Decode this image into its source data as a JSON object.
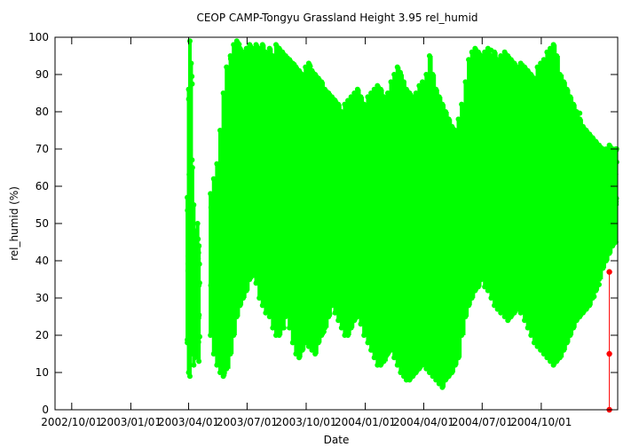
{
  "chart_data": {
    "type": "scatter",
    "title": "CEOP CAMP-Tongyu Grassland Height 3.95 rel_humid",
    "xlabel": "Date",
    "ylabel": "rel_humid (%)",
    "xlim": [
      "2002-09-05",
      "2005-01-28"
    ],
    "ylim": [
      0,
      100
    ],
    "x_ticks": [
      {
        "value": "2002-10-01",
        "label": "2002/10/01"
      },
      {
        "value": "2003-01-01",
        "label": "2003/01/01"
      },
      {
        "value": "2003-04-01",
        "label": "2003/04/01"
      },
      {
        "value": "2003-07-01",
        "label": "2003/07/01"
      },
      {
        "value": "2003-10-01",
        "label": "2003/10/01"
      },
      {
        "value": "2004-01-01",
        "label": "2004/01/01"
      },
      {
        "value": "2004-04-01",
        "label": "2004/04/01"
      },
      {
        "value": "2004-07-01",
        "label": "2004/07/01"
      },
      {
        "value": "2004-10-01",
        "label": "2004/10/01"
      }
    ],
    "y_ticks": [
      "0",
      "10",
      "20",
      "30",
      "40",
      "50",
      "60",
      "70",
      "80",
      "90",
      "100"
    ],
    "grid": false,
    "series": [
      {
        "color": "#00ff00",
        "marker": "circle",
        "envelope_note": "dense daily min-max ranges of relative humidity",
        "segments": [
          {
            "x": [
              "2003-03-30",
              "2003-04-01",
              "2003-04-03",
              "2003-04-05",
              "2003-04-07",
              "2003-04-09",
              "2003-04-11",
              "2003-04-13",
              "2003-04-15",
              "2003-04-17"
            ],
            "low": [
              18,
              10,
              9,
              15,
              18,
              12,
              14,
              20,
              15,
              13
            ],
            "high": [
              57,
              86,
              99,
              93,
              65,
              55,
              48,
              47,
              50,
              44
            ]
          },
          {
            "x": [
              "2003-05-05",
              "2003-05-10",
              "2003-05-15",
              "2003-05-20",
              "2003-05-25",
              "2003-05-30",
              "2003-06-05",
              "2003-06-10",
              "2003-06-15",
              "2003-06-20",
              "2003-06-25",
              "2003-06-30",
              "2003-07-05",
              "2003-07-10",
              "2003-07-15",
              "2003-07-20",
              "2003-07-25",
              "2003-07-30",
              "2003-08-05",
              "2003-08-10",
              "2003-08-15",
              "2003-08-20",
              "2003-08-25",
              "2003-08-30",
              "2003-09-05",
              "2003-09-10",
              "2003-09-15",
              "2003-09-20",
              "2003-09-25",
              "2003-09-30",
              "2003-10-05",
              "2003-10-10",
              "2003-10-15",
              "2003-10-20",
              "2003-10-25",
              "2003-10-30",
              "2003-11-05",
              "2003-11-10",
              "2003-11-15",
              "2003-11-20",
              "2003-11-25",
              "2003-11-30",
              "2003-12-05",
              "2003-12-10",
              "2003-12-15",
              "2003-12-20",
              "2003-12-25",
              "2003-12-30",
              "2004-01-05",
              "2004-01-10",
              "2004-01-15",
              "2004-01-20",
              "2004-01-25",
              "2004-01-30",
              "2004-02-05",
              "2004-02-10",
              "2004-02-15",
              "2004-02-20",
              "2004-02-25",
              "2004-03-01",
              "2004-03-05",
              "2004-03-10",
              "2004-03-15",
              "2004-03-20",
              "2004-03-25",
              "2004-03-30",
              "2004-04-05",
              "2004-04-10",
              "2004-04-15",
              "2004-04-20",
              "2004-04-25",
              "2004-04-30",
              "2004-05-05",
              "2004-05-10",
              "2004-05-15",
              "2004-05-20",
              "2004-05-25",
              "2004-05-30",
              "2004-06-05",
              "2004-06-10",
              "2004-06-15",
              "2004-06-20",
              "2004-06-25",
              "2004-06-30",
              "2004-07-05",
              "2004-07-10",
              "2004-07-15",
              "2004-07-20",
              "2004-07-25",
              "2004-07-30",
              "2004-08-05",
              "2004-08-10",
              "2004-08-15",
              "2004-08-20",
              "2004-08-25",
              "2004-08-30",
              "2004-09-05",
              "2004-09-10",
              "2004-09-15",
              "2004-09-20",
              "2004-09-25",
              "2004-09-30",
              "2004-10-05",
              "2004-10-10",
              "2004-10-15",
              "2004-10-20",
              "2004-10-25",
              "2004-10-30",
              "2004-11-05",
              "2004-11-10",
              "2004-11-15",
              "2004-11-20",
              "2004-11-25",
              "2004-11-30",
              "2004-12-05",
              "2004-12-10",
              "2004-12-15",
              "2004-12-20",
              "2004-12-25",
              "2004-12-30",
              "2005-01-05",
              "2005-01-10",
              "2005-01-15",
              "2005-01-20",
              "2005-01-25"
            ],
            "low": [
              20,
              15,
              12,
              10,
              9,
              11,
              15,
              20,
              25,
              28,
              30,
              32,
              35,
              36,
              34,
              30,
              28,
              26,
              25,
              22,
              20,
              20,
              22,
              25,
              22,
              18,
              15,
              14,
              16,
              18,
              17,
              16,
              15,
              18,
              20,
              22,
              25,
              28,
              26,
              24,
              22,
              20,
              20,
              22,
              24,
              25,
              23,
              20,
              18,
              16,
              14,
              12,
              12,
              13,
              15,
              16,
              14,
              12,
              10,
              9,
              8,
              8,
              9,
              10,
              11,
              12,
              11,
              10,
              9,
              8,
              7,
              6,
              8,
              9,
              10,
              12,
              14,
              20,
              25,
              28,
              30,
              32,
              33,
              35,
              33,
              32,
              30,
              28,
              27,
              26,
              25,
              24,
              25,
              26,
              27,
              26,
              24,
              22,
              20,
              18,
              17,
              16,
              15,
              14,
              13,
              12,
              13,
              14,
              16,
              18,
              20,
              22,
              24,
              25,
              26,
              27,
              28,
              30,
              32,
              35,
              38,
              40,
              42,
              44,
              45
            ],
            "high": [
              58,
              62,
              66,
              75,
              85,
              92,
              95,
              98,
              99,
              97,
              96,
              97,
              98,
              97,
              98,
              97,
              98,
              96,
              97,
              95,
              98,
              97,
              96,
              95,
              94,
              93,
              92,
              91,
              90,
              92,
              93,
              91,
              90,
              89,
              88,
              86,
              85,
              84,
              83,
              82,
              80,
              82,
              83,
              84,
              85,
              86,
              84,
              82,
              84,
              85,
              86,
              87,
              86,
              84,
              85,
              88,
              90,
              92,
              90,
              88,
              86,
              85,
              84,
              85,
              87,
              88,
              90,
              95,
              90,
              86,
              84,
              82,
              80,
              78,
              76,
              75,
              78,
              82,
              88,
              94,
              96,
              97,
              96,
              95,
              96,
              97,
              95,
              96,
              94,
              95,
              96,
              95,
              94,
              93,
              92,
              93,
              92,
              91,
              90,
              89,
              92,
              93,
              94,
              96,
              97,
              98,
              95,
              90,
              88,
              86,
              84,
              82,
              80,
              78,
              76,
              75,
              74,
              73,
              72,
              71,
              70,
              70,
              71,
              70,
              70
            ]
          }
        ]
      },
      {
        "color": "#ff0000",
        "marker": "circle",
        "x": [
          "2005-01-15",
          "2005-01-15",
          "2005-01-15"
        ],
        "values": [
          37,
          15,
          0
        ]
      }
    ]
  }
}
